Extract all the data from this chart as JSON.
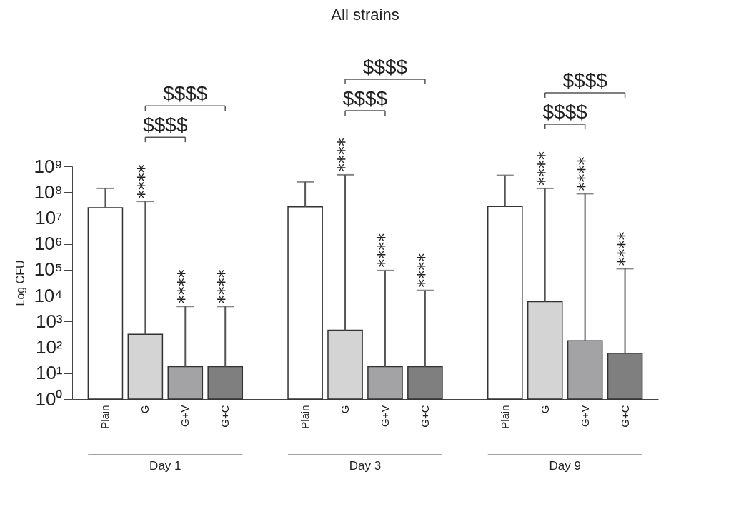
{
  "chart_data": {
    "type": "bar",
    "title": "All strains",
    "ylabel": "Log CFU",
    "categories": [
      "Plain",
      "G",
      "G+V",
      "G+C",
      "Plain",
      "G",
      "G+V",
      "G+C",
      "Plain",
      "G",
      "G+V",
      "G+C"
    ],
    "values": [
      25000000,
      320,
      18,
      18,
      27000000,
      460,
      18,
      18,
      28000000,
      5900,
      180,
      59
    ],
    "colors": [
      "#ffffff",
      "#d4d4d4",
      "#a3a3a5",
      "#7f7f7f",
      "#ffffff",
      "#d4d4d4",
      "#a3a3a5",
      "#7f7f7f",
      "#ffffff",
      "#d4d4d4",
      "#a3a3a5",
      "#7f7f7f"
    ],
    "errors": [
      [
        25000000,
        140000000
      ],
      [
        320,
        44000000
      ],
      [
        18,
        3800
      ],
      [
        18,
        3800
      ],
      [
        27000000,
        250000000
      ],
      [
        460,
        470000000
      ],
      [
        18,
        94000
      ],
      [
        18,
        16000
      ],
      [
        28000000,
        450000000
      ],
      [
        5900,
        140000000
      ],
      [
        180,
        87000000
      ],
      [
        59,
        110000
      ]
    ],
    "log": true,
    "ylim": [
      1,
      1000000000
    ],
    "yticks": [
      {
        "value": 1,
        "label": "10⁰"
      },
      {
        "value": 10,
        "label": "10¹"
      },
      {
        "value": 100,
        "label": "10²"
      },
      {
        "value": 1000,
        "label": "10³"
      },
      {
        "value": 10000,
        "label": "10⁴"
      },
      {
        "value": 100000,
        "label": "10⁵"
      },
      {
        "value": 1000000,
        "label": "10⁶"
      },
      {
        "value": 10000000,
        "label": "10⁷"
      },
      {
        "value": 100000000,
        "label": "10⁸"
      },
      {
        "value": 1000000000,
        "label": "10⁹"
      }
    ],
    "annotations": [
      "Day 1",
      "Day 3",
      "Day 9",
      "****",
      "****",
      "****",
      "****",
      "****",
      "****",
      "****",
      "****",
      "****",
      "$$$$",
      "$$$$",
      "$$$$",
      "$$$$",
      "$$$$",
      "$$$$"
    ]
  }
}
